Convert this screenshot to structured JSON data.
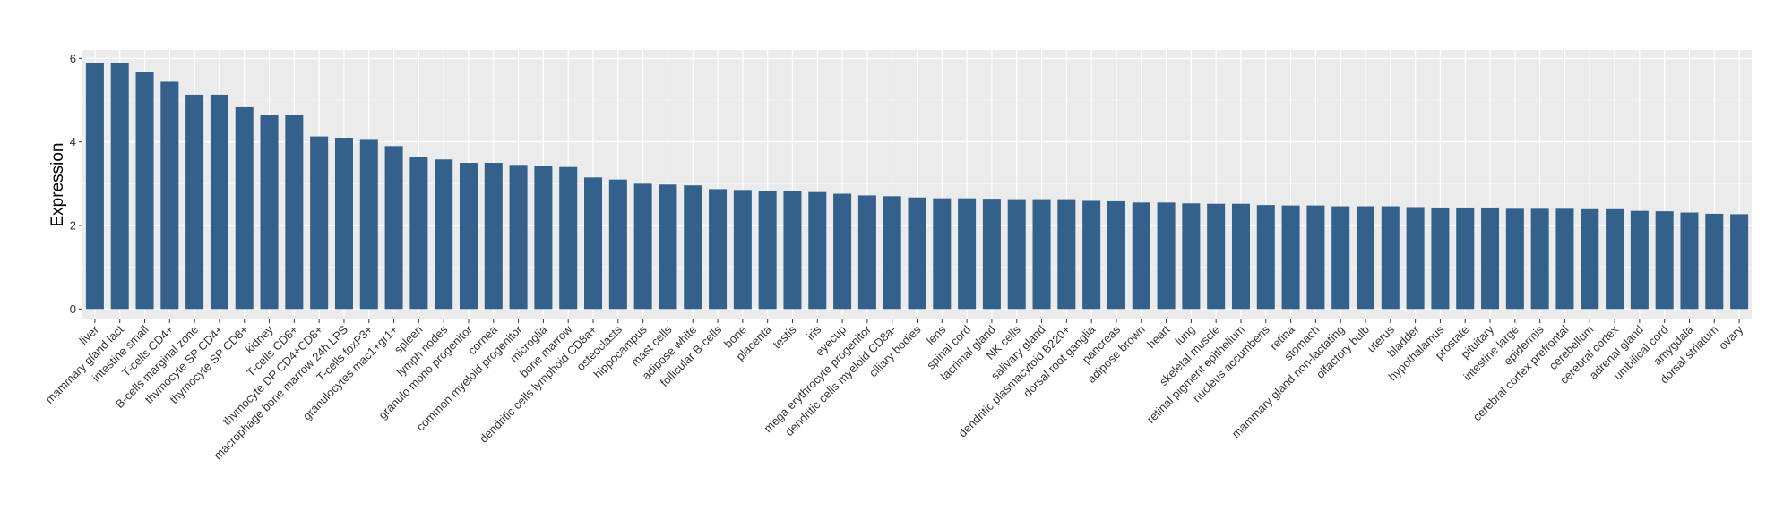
{
  "chart_data": {
    "type": "bar",
    "title": "",
    "xlabel": "",
    "ylabel": "Expression",
    "ylim": [
      -0.25,
      6.2
    ],
    "yticks": [
      0,
      2,
      4,
      6
    ],
    "grid": true,
    "legend": "none",
    "colors": {
      "bar": "#34618c",
      "panel": "#ebebeb",
      "grid_major": "#ffffff",
      "grid_minor": "#f5f5f5",
      "axis_text": "#4d4d4d"
    },
    "categories": [
      "liver",
      "mammary gland lact",
      "intestine small",
      "T-cells CD4+",
      "B-cells marginal zone",
      "thymocyte SP CD4+",
      "thymocyte SP CD8+",
      "kidney",
      "T-cells CD8+",
      "thymocyte DP CD4+CD8+",
      "macrophage bone marrow 24h LPS",
      "T-cells foxP3+",
      "granulocytes mac1+gr1+",
      "spleen",
      "lymph nodes",
      "granulo mono progenitor",
      "cornea",
      "common myeloid progenitor",
      "microglia",
      "bone marrow",
      "dendritic cells lymphoid CD8a+",
      "osteoclasts",
      "hippocampus",
      "mast cells",
      "adipose white",
      "follicular B-cells",
      "bone",
      "placenta",
      "testis",
      "iris",
      "eyecup",
      "mega erythrocyte progenitor",
      "dendritic cells myeloid CD8a-",
      "ciliary bodies",
      "lens",
      "spinal cord",
      "lacrimal gland",
      "NK cells",
      "salivary gland",
      "dendritic plasmacytoid B220+",
      "dorsal root ganglia",
      "pancreas",
      "adipose brown",
      "heart",
      "lung",
      "skeletal muscle",
      "retinal pigment epithelium",
      "nucleus accumbens",
      "retina",
      "stomach",
      "mammary gland non-lactating",
      "olfactory bulb",
      "uterus",
      "bladder",
      "hypothalamus",
      "prostate",
      "pituitary",
      "intestine large",
      "epidermis",
      "cerebral cortex prefrontal",
      "cerebellum",
      "cerebral cortex",
      "adrenal gland",
      "umbilical cord",
      "amygdala",
      "dorsal striatum",
      "ovary"
    ],
    "values": [
      5.9,
      5.9,
      5.67,
      5.44,
      5.13,
      5.13,
      4.83,
      4.65,
      4.65,
      4.13,
      4.1,
      4.07,
      3.9,
      3.65,
      3.58,
      3.5,
      3.5,
      3.45,
      3.43,
      3.4,
      3.15,
      3.1,
      3.0,
      2.98,
      2.96,
      2.87,
      2.85,
      2.82,
      2.82,
      2.8,
      2.76,
      2.72,
      2.7,
      2.67,
      2.65,
      2.65,
      2.64,
      2.63,
      2.63,
      2.63,
      2.59,
      2.58,
      2.55,
      2.55,
      2.53,
      2.52,
      2.52,
      2.49,
      2.48,
      2.48,
      2.46,
      2.46,
      2.46,
      2.44,
      2.43,
      2.43,
      2.43,
      2.4,
      2.4,
      2.4,
      2.39,
      2.39,
      2.35,
      2.34,
      2.31,
      2.28,
      2.27
    ]
  }
}
